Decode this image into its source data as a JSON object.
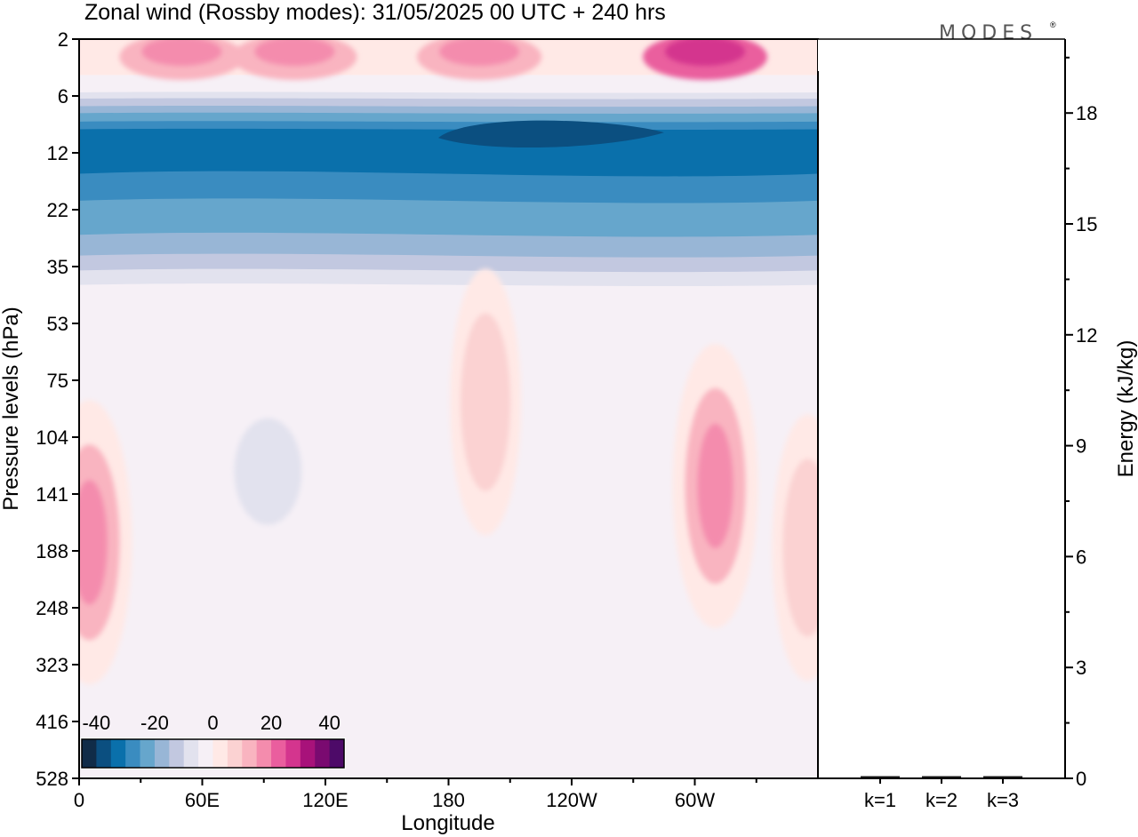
{
  "chart_data": [
    {
      "type": "heatmap",
      "title": "Zonal wind (Rossby modes):  31/05/2025  00 UTC  + 240 hrs",
      "xlabel": "Longitude",
      "ylabel": "Pressure levels (hPa)",
      "x_ticks": [
        "0",
        "60E",
        "120E",
        "180",
        "120W",
        "60W"
      ],
      "y_ticks": [
        "2",
        "6",
        "12",
        "22",
        "35",
        "53",
        "75",
        "104",
        "141",
        "188",
        "248",
        "323",
        "416",
        "528"
      ],
      "colorbar": {
        "tick_labels": [
          "-40",
          "-20",
          "0",
          "20",
          "40"
        ],
        "min": -45,
        "max": 45,
        "step": 5,
        "colors": [
          "#102c48",
          "#0b4f80",
          "#0a70ab",
          "#3a8cc0",
          "#66a6cc",
          "#98b6d6",
          "#c2c8e0",
          "#e2e2ee",
          "#f6f0f6",
          "#ffe9e6",
          "#fbd2d2",
          "#f9b4c0",
          "#f48cad",
          "#ea5e9e",
          "#d4358e",
          "#a8127a",
          "#7a0a70",
          "#4d0a68"
        ]
      },
      "x_range": [
        0,
        360
      ],
      "y_range": [
        528,
        2
      ],
      "fields": {
        "pink_aloft_2hPa": [
          {
            "x": 50,
            "y": "2-3",
            "value": 15
          },
          {
            "x": 105,
            "y": "2-3",
            "value": 15
          },
          {
            "x": 195,
            "y": "2-3",
            "value": 15
          },
          {
            "x": 305,
            "y": "2-3",
            "value": 25
          }
        ],
        "easterly_jet": {
          "y_range": "6-40",
          "core_y": 10,
          "core_x": [
            175,
            285
          ],
          "min_value": -40,
          "band_value": -30
        },
        "positive_anomalies": [
          {
            "x": 5,
            "y": 180,
            "value": 15
          },
          {
            "x": 198,
            "y": 85,
            "value": 10
          },
          {
            "x": 310,
            "y": 135,
            "value": 15
          },
          {
            "x": 355,
            "y": 185,
            "value": 10
          }
        ],
        "negative_anomalies": [
          {
            "x": 92,
            "y": 125,
            "value": -10
          },
          {
            "x": 258,
            "y": 145,
            "value": -5
          },
          {
            "x": 340,
            "y": 470,
            "value": -5
          }
        ]
      }
    },
    {
      "type": "bar",
      "ylabel": "Energy (kJ/kg)",
      "categories": [
        "k=1",
        "k=2",
        "k=3"
      ],
      "values": [
        0.02,
        0.02,
        0.01
      ],
      "ylim": [
        0,
        20
      ],
      "y_ticks": [
        "0",
        "3",
        "6",
        "9",
        "12",
        "15",
        "18"
      ]
    }
  ],
  "logo": "MODES",
  "logo_mark": "®"
}
